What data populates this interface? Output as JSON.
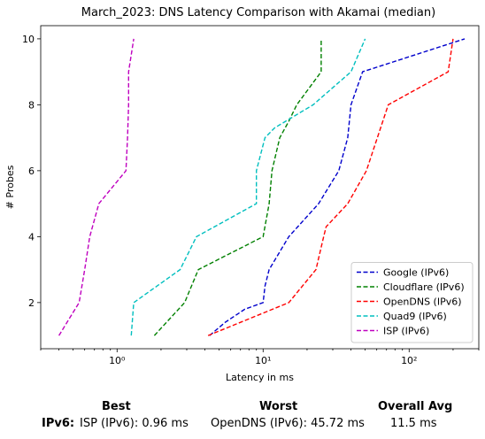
{
  "chart_data": {
    "type": "line",
    "title": "March_2023: DNS Latency Comparison with Akamai (median)",
    "xlabel": "Latency in ms",
    "ylabel": "# Probes",
    "xscale": "log",
    "xlim": [
      0.3,
      300
    ],
    "ylim": [
      0.6,
      10.4
    ],
    "x_ticks": [
      {
        "value": 1,
        "label": "10⁰"
      },
      {
        "value": 10,
        "label": "10¹"
      },
      {
        "value": 100,
        "label": "10²"
      }
    ],
    "y_ticks": [
      2,
      4,
      6,
      8,
      10
    ],
    "grid": false,
    "legend_position": "bottom-right",
    "series": [
      {
        "name": "Google (IPv6)",
        "color": "#0000cc",
        "x": [
          4.3,
          5.5,
          7.5,
          10.0,
          10.3,
          11.0,
          15.0,
          24.0,
          33.0,
          38.0,
          40.0,
          48.0,
          240.0
        ],
        "y": [
          1,
          1.4,
          1.8,
          2,
          2.5,
          3,
          4,
          5,
          6,
          7,
          8,
          9,
          10
        ]
      },
      {
        "name": "Cloudflare (IPv6)",
        "color": "#008000",
        "x": [
          1.8,
          2.9,
          3.6,
          10.0,
          11.0,
          11.5,
          13.0,
          15.0,
          17.0,
          25.0,
          25.0
        ],
        "y": [
          1,
          2,
          3,
          4,
          5,
          6,
          7,
          7.5,
          8,
          9,
          10
        ]
      },
      {
        "name": "OpenDNS (IPv6)",
        "color": "#ff0000",
        "x": [
          4.2,
          15.0,
          23.0,
          26.0,
          27.0,
          38.0,
          51.0,
          72.0,
          185.0,
          200.0
        ],
        "y": [
          1,
          2,
          3,
          4,
          4.3,
          5,
          6,
          8,
          9,
          10
        ]
      },
      {
        "name": "Quad9 (IPv6)",
        "color": "#00bfbf",
        "x": [
          1.25,
          1.3,
          2.7,
          3.5,
          9.0,
          9.0,
          10.3,
          12.0,
          22.0,
          40.0,
          50.0
        ],
        "y": [
          1,
          2,
          3,
          4,
          5,
          6,
          7,
          7.3,
          8,
          9,
          10
        ]
      },
      {
        "name": "ISP (IPv6)",
        "color": "#bf00bf",
        "x": [
          0.4,
          0.55,
          0.6,
          0.65,
          0.75,
          1.15,
          1.18,
          1.2,
          1.2,
          1.3
        ],
        "y": [
          1,
          2,
          3,
          4,
          5,
          6,
          7,
          8,
          9,
          10
        ]
      }
    ]
  },
  "summary": {
    "best_header": "Best",
    "worst_header": "Worst",
    "avg_header": "Overall Avg",
    "row_label": "IPv6:",
    "best_value": "ISP (IPv6): 0.96 ms",
    "worst_value": "OpenDNS (IPv6): 45.72 ms",
    "avg_value": "11.5 ms"
  }
}
